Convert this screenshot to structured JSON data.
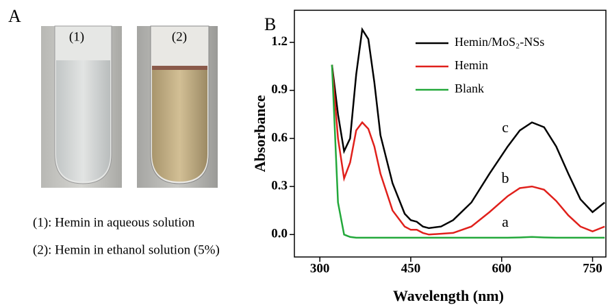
{
  "panel_a": {
    "label": "A",
    "tubes": [
      "(1)",
      "(2)"
    ],
    "captions": [
      "(1): Hemin in aqueous solution",
      "(2): Hemin in ethanol solution (5%)"
    ]
  },
  "chart_data": {
    "type": "line",
    "panel_label": "B",
    "x_label": "Wavelength (nm)",
    "y_label": "Absorbance",
    "xlim": [
      258,
      772
    ],
    "ylim": [
      -0.14,
      1.4
    ],
    "xticks": [
      300,
      450,
      600,
      750
    ],
    "yticks": [
      {
        "value": 0,
        "label": "0.0"
      },
      0.3,
      0.6,
      0.9,
      1.2
    ],
    "x": [
      320,
      330,
      340,
      350,
      360,
      370,
      380,
      390,
      400,
      420,
      440,
      450,
      460,
      470,
      480,
      500,
      520,
      550,
      580,
      610,
      630,
      650,
      670,
      690,
      710,
      730,
      750,
      770
    ],
    "series": [
      {
        "name": "Hemin/MoS₂-NSs",
        "color": "#000000",
        "values": [
          1.06,
          0.75,
          0.52,
          0.6,
          1.0,
          1.28,
          1.22,
          0.95,
          0.62,
          0.32,
          0.13,
          0.09,
          0.08,
          0.05,
          0.04,
          0.05,
          0.09,
          0.2,
          0.38,
          0.55,
          0.65,
          0.7,
          0.67,
          0.55,
          0.38,
          0.22,
          0.14,
          0.2
        ]
      },
      {
        "name": "Hemin",
        "color": "#e0201b",
        "values": [
          1.06,
          0.6,
          0.35,
          0.45,
          0.65,
          0.7,
          0.66,
          0.55,
          0.38,
          0.15,
          0.05,
          0.03,
          0.03,
          0.01,
          0.0,
          0.005,
          0.01,
          0.05,
          0.14,
          0.24,
          0.29,
          0.3,
          0.28,
          0.21,
          0.12,
          0.05,
          0.02,
          0.05
        ]
      },
      {
        "name": "Blank",
        "color": "#22a83a",
        "values": [
          1.06,
          0.2,
          0.0,
          -0.015,
          -0.02,
          -0.02,
          -0.02,
          -0.02,
          -0.02,
          -0.02,
          -0.02,
          -0.02,
          -0.02,
          -0.02,
          -0.02,
          -0.02,
          -0.02,
          -0.02,
          -0.02,
          -0.02,
          -0.018,
          -0.015,
          -0.018,
          -0.02,
          -0.02,
          -0.02,
          -0.02,
          -0.02
        ]
      }
    ],
    "annotations": [
      "c",
      "b",
      "a"
    ]
  }
}
